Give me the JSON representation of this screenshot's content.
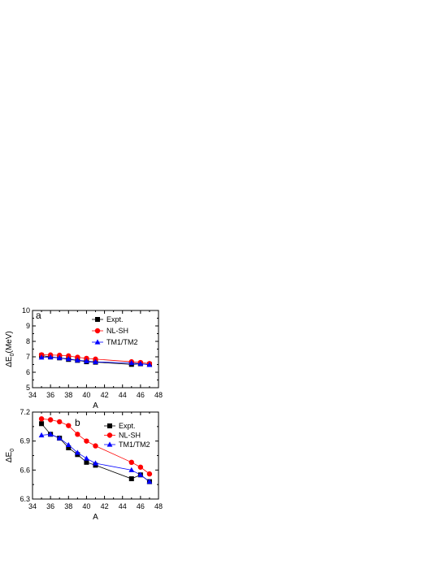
{
  "chart_data": [
    {
      "panel_label": "a",
      "type": "line",
      "xlabel": "A",
      "ylabel": "ΔE",
      "ylabel_sub": "0",
      "ylabel_unit": "(MeV)",
      "xlim": [
        34,
        48
      ],
      "ylim": [
        5,
        10
      ],
      "xticks": [
        34,
        36,
        38,
        40,
        42,
        44,
        46,
        48
      ],
      "yticks": [
        5,
        6,
        7,
        8,
        9,
        10
      ],
      "legend_position": "top-right",
      "series": [
        {
          "name": "Expt.",
          "color": "#000000",
          "marker": "square",
          "x": [
            35,
            36,
            37,
            38,
            39,
            40,
            41,
            45,
            46,
            47
          ],
          "y": [
            7.08,
            6.99,
            6.93,
            6.83,
            6.77,
            6.68,
            6.65,
            6.51,
            6.55,
            6.5
          ]
        },
        {
          "name": "NL-SH",
          "color": "#ff0000",
          "marker": "circle",
          "x": [
            35,
            36,
            37,
            38,
            39,
            40,
            41,
            45,
            46,
            47
          ],
          "y": [
            7.13,
            7.12,
            7.1,
            7.06,
            6.97,
            6.9,
            6.85,
            6.68,
            6.63,
            6.56
          ]
        },
        {
          "name": "TM1/TM2",
          "color": "#0000ff",
          "marker": "triangle",
          "x": [
            35,
            36,
            37,
            38,
            39,
            40,
            41,
            45,
            46,
            47
          ],
          "y": [
            6.96,
            6.97,
            6.93,
            6.86,
            6.78,
            6.72,
            6.67,
            6.6,
            6.55,
            6.48
          ]
        }
      ]
    },
    {
      "panel_label": "b",
      "type": "line",
      "xlabel": "A",
      "ylabel": "ΔE",
      "ylabel_sub": "0",
      "ylabel_unit": "",
      "xlim": [
        34,
        48
      ],
      "ylim": [
        6.3,
        7.2
      ],
      "xticks": [
        34,
        36,
        38,
        40,
        42,
        44,
        46,
        48
      ],
      "yticks": [
        6.3,
        6.6,
        6.9,
        7.2
      ],
      "ytick_labels": [
        "6.3",
        "6.6",
        "6.9",
        "7.2"
      ],
      "legend_position": "top-right",
      "series": [
        {
          "name": "Expt.",
          "color": "#000000",
          "marker": "square",
          "x": [
            35,
            36,
            37,
            38,
            39,
            40,
            41,
            45,
            46,
            47
          ],
          "y": [
            7.08,
            6.97,
            6.93,
            6.83,
            6.76,
            6.68,
            6.65,
            6.51,
            6.55,
            6.48
          ]
        },
        {
          "name": "NL-SH",
          "color": "#ff0000",
          "marker": "circle",
          "x": [
            35,
            36,
            37,
            38,
            39,
            40,
            41,
            45,
            46,
            47
          ],
          "y": [
            7.13,
            7.12,
            7.1,
            7.06,
            6.97,
            6.9,
            6.85,
            6.68,
            6.63,
            6.56
          ]
        },
        {
          "name": "TM1/TM2",
          "color": "#0000ff",
          "marker": "triangle",
          "x": [
            35,
            36,
            37,
            38,
            39,
            40,
            41,
            45,
            46,
            47
          ],
          "y": [
            6.96,
            6.97,
            6.93,
            6.86,
            6.78,
            6.72,
            6.67,
            6.6,
            6.55,
            6.48
          ]
        }
      ]
    }
  ]
}
